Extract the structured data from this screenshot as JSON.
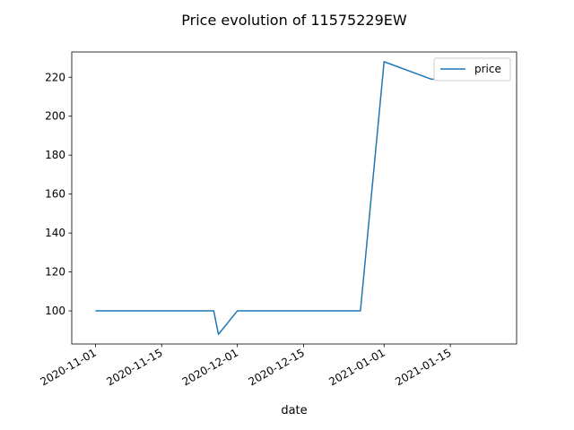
{
  "chart_data": {
    "type": "line",
    "title": "Price evolution of 11575229EW",
    "xlabel": "date",
    "ylabel": "",
    "x_axis_type": "date",
    "xlim": [
      "2020-10-27",
      "2021-01-29"
    ],
    "ylim": [
      83,
      233
    ],
    "x_ticks": [
      "2020-11-01",
      "2020-11-15",
      "2020-12-01",
      "2020-12-15",
      "2021-01-01",
      "2021-01-15"
    ],
    "y_ticks": [
      100,
      120,
      140,
      160,
      180,
      200,
      220
    ],
    "grid": false,
    "legend": {
      "position": "top-right",
      "entries": [
        "price"
      ]
    },
    "series": [
      {
        "name": "price",
        "color": "#1f77b4",
        "x": [
          "2020-11-01",
          "2020-11-26",
          "2020-11-27",
          "2020-12-01",
          "2020-12-27",
          "2021-01-01",
          "2021-01-11",
          "2021-01-25"
        ],
        "y": [
          100,
          100,
          88,
          100,
          100,
          228,
          219,
          219
        ]
      }
    ]
  }
}
